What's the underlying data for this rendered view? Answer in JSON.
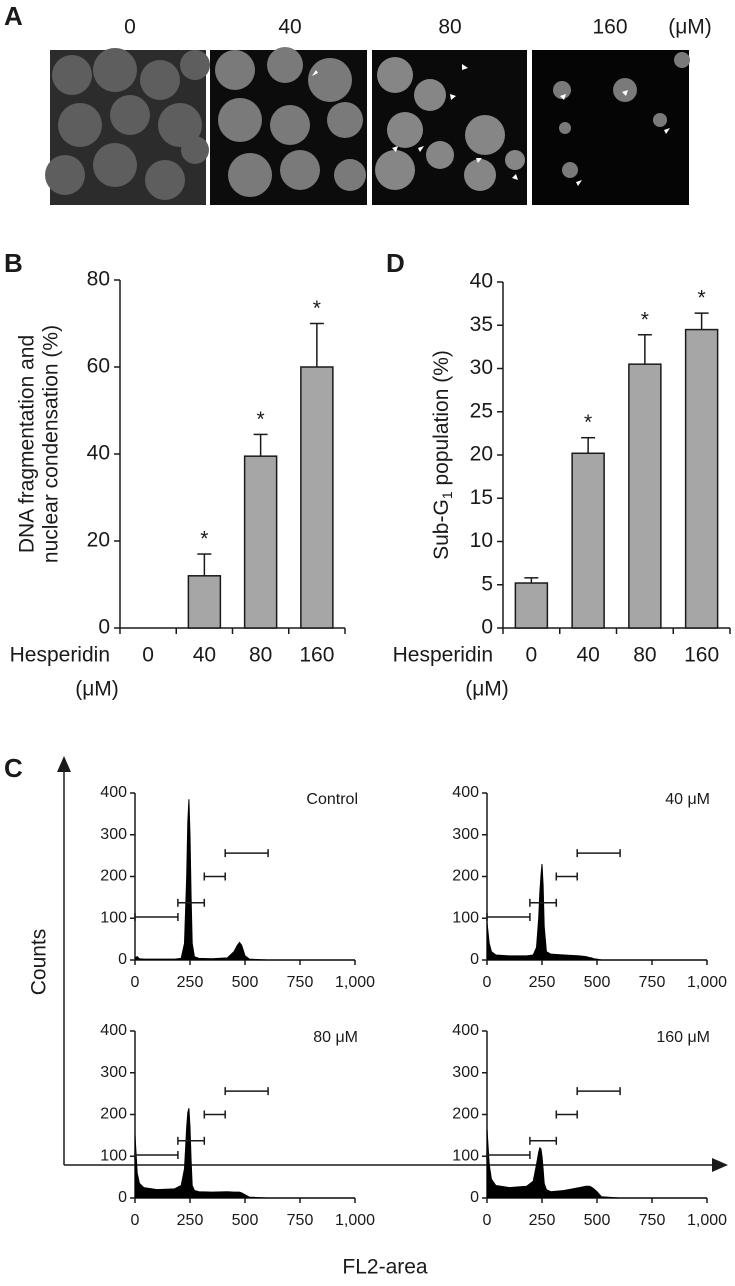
{
  "image_panel": {
    "panel": "A",
    "labels": [
      "0",
      "40",
      "80",
      "160"
    ],
    "unit": "(μM)"
  },
  "chart_data": [
    {
      "type": "bar",
      "panel": "B",
      "ylabel_lines": [
        "DNA fragmentation and",
        "nuclear condensation (%)"
      ],
      "xlabel": "Hesperidin",
      "xunit": "(μM)",
      "categories": [
        "0",
        "40",
        "80",
        "160"
      ],
      "values": [
        0,
        12,
        39.5,
        60
      ],
      "errors": [
        null,
        5,
        5,
        10
      ],
      "significance": [
        null,
        "*",
        "*",
        "*"
      ],
      "color": "#a6a6a6",
      "ylim": [
        0,
        80
      ],
      "yticks": [
        0,
        20,
        40,
        60,
        80
      ]
    },
    {
      "type": "bar",
      "panel": "D",
      "ylabel": {
        "main": "Sub-G",
        "sub": "1",
        "rest": " population (%)"
      },
      "xlabel": "Hesperidin",
      "xunit": "(μM)",
      "categories": [
        "0",
        "40",
        "80",
        "160"
      ],
      "values": [
        5.2,
        20.2,
        30.5,
        34.5
      ],
      "errors": [
        0.6,
        1.8,
        3.4,
        1.9
      ],
      "significance": [
        null,
        "*",
        "*",
        "*"
      ],
      "color": "#a6a6a6",
      "ylim": [
        0,
        40
      ],
      "yticks": [
        0,
        5,
        10,
        15,
        20,
        25,
        30,
        35,
        40
      ]
    },
    {
      "type": "area",
      "title": "Control",
      "color": "#000000",
      "x": [
        0,
        10,
        20,
        40,
        100,
        180,
        210,
        225,
        235,
        240,
        245,
        250,
        255,
        260,
        270,
        290,
        350,
        420,
        450,
        465,
        475,
        485,
        500,
        520,
        600,
        1000
      ],
      "values": [
        5,
        8,
        3,
        2,
        2,
        2,
        4,
        40,
        200,
        330,
        385,
        300,
        150,
        40,
        8,
        4,
        3,
        5,
        20,
        35,
        42,
        35,
        10,
        2,
        0,
        0
      ],
      "xlim": [
        0,
        1000
      ],
      "xticks": [
        0,
        250,
        500,
        750,
        {
          "value": 1000,
          "label": "1,000"
        }
      ],
      "ylim": [
        0,
        400
      ],
      "yticks": [
        0,
        100,
        200,
        300,
        400
      ],
      "gates": [
        {
          "x": [
            0,
            195
          ],
          "y": 103
        },
        {
          "x": [
            195,
            315
          ],
          "y": 137
        },
        {
          "x": [
            315,
            410
          ],
          "y": 200
        },
        {
          "x": [
            410,
            605
          ],
          "y": 256
        }
      ]
    },
    {
      "type": "area",
      "title": "40 μM",
      "color": "#000000",
      "x": [
        0,
        10,
        20,
        40,
        100,
        180,
        210,
        225,
        235,
        240,
        245,
        250,
        255,
        260,
        270,
        290,
        350,
        420,
        450,
        465,
        475,
        485,
        500,
        520,
        600,
        1000
      ],
      "values": [
        90,
        40,
        20,
        12,
        10,
        10,
        12,
        30,
        100,
        160,
        200,
        230,
        180,
        80,
        20,
        14,
        12,
        10,
        8,
        6,
        5,
        3,
        2,
        0,
        0,
        0
      ],
      "xlim": [
        0,
        1000
      ],
      "xticks": [
        0,
        250,
        500,
        750,
        {
          "value": 1000,
          "label": "1,000"
        }
      ],
      "ylim": [
        0,
        400
      ],
      "yticks": [
        0,
        100,
        200,
        300,
        400
      ],
      "gates": [
        {
          "x": [
            0,
            195
          ],
          "y": 103
        },
        {
          "x": [
            195,
            315
          ],
          "y": 137
        },
        {
          "x": [
            315,
            410
          ],
          "y": 200
        },
        {
          "x": [
            410,
            605
          ],
          "y": 256
        }
      ]
    },
    {
      "type": "area",
      "title": "80 μM",
      "color": "#000000",
      "x": [
        0,
        10,
        20,
        40,
        100,
        180,
        210,
        225,
        235,
        240,
        245,
        250,
        255,
        260,
        270,
        290,
        350,
        420,
        450,
        465,
        475,
        485,
        500,
        520,
        600,
        1000
      ],
      "values": [
        150,
        60,
        35,
        25,
        20,
        22,
        30,
        70,
        170,
        205,
        215,
        170,
        90,
        30,
        18,
        15,
        14,
        15,
        14,
        14,
        14,
        12,
        8,
        2,
        0,
        0
      ],
      "xlim": [
        0,
        1000
      ],
      "xticks": [
        0,
        250,
        500,
        750,
        {
          "value": 1000,
          "label": "1,000"
        }
      ],
      "ylim": [
        0,
        400
      ],
      "yticks": [
        0,
        100,
        200,
        300,
        400
      ],
      "gates": [
        {
          "x": [
            0,
            195
          ],
          "y": 103
        },
        {
          "x": [
            195,
            315
          ],
          "y": 137
        },
        {
          "x": [
            315,
            410
          ],
          "y": 200
        },
        {
          "x": [
            410,
            605
          ],
          "y": 256
        }
      ]
    },
    {
      "type": "area",
      "title": "160 μM",
      "color": "#000000",
      "x": [
        0,
        10,
        20,
        40,
        100,
        180,
        210,
        225,
        235,
        240,
        245,
        250,
        255,
        260,
        270,
        290,
        350,
        420,
        450,
        465,
        475,
        485,
        500,
        520,
        600,
        1000
      ],
      "values": [
        165,
        80,
        45,
        30,
        25,
        28,
        40,
        80,
        110,
        120,
        118,
        100,
        70,
        35,
        20,
        15,
        18,
        25,
        28,
        28,
        26,
        22,
        15,
        3,
        0,
        0
      ],
      "xlim": [
        0,
        1000
      ],
      "xticks": [
        0,
        250,
        500,
        750,
        {
          "value": 1000,
          "label": "1,000"
        }
      ],
      "ylim": [
        0,
        400
      ],
      "yticks": [
        0,
        100,
        200,
        300,
        400
      ],
      "gates": [
        {
          "x": [
            0,
            195
          ],
          "y": 103
        },
        {
          "x": [
            195,
            315
          ],
          "y": 137
        },
        {
          "x": [
            315,
            410
          ],
          "y": 200
        },
        {
          "x": [
            410,
            605
          ],
          "y": 256
        }
      ]
    }
  ],
  "flow_axes": {
    "panel": "C",
    "ylabel": "Counts",
    "xlabel": "FL2-area"
  }
}
